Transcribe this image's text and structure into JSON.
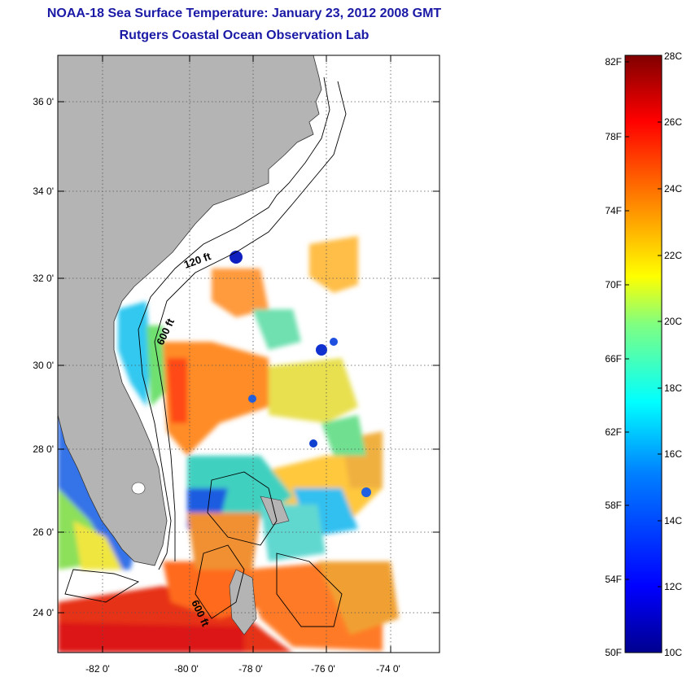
{
  "title": {
    "line1": "NOAA-18 Sea Surface Temperature:  January 23, 2012 2008 GMT",
    "line2": "Rutgers Coastal Ocean Observation Lab"
  },
  "map": {
    "lat_ticks": [
      "24 0'",
      "26 0'",
      "28 0'",
      "30 0'",
      "32 0'",
      "34 0'",
      "36 0'"
    ],
    "lon_ticks": [
      "-82 0'",
      "-80 0'",
      "-78 0'",
      "-76 0'",
      "-74 0'"
    ],
    "contour_labels": [
      "120 ft",
      "600 ft",
      "600 ft"
    ],
    "colors": {
      "land": "#b4b4b4",
      "cloud": "#ffffff",
      "grid": "#555555"
    }
  },
  "colorbar": {
    "fahrenheit_labels": [
      "82F",
      "78F",
      "74F",
      "70F",
      "66F",
      "62F",
      "58F",
      "54F",
      "50F"
    ],
    "celsius_labels": [
      "28C",
      "26C",
      "24C",
      "22C",
      "20C",
      "18C",
      "16C",
      "14C",
      "12C",
      "10C"
    ],
    "colors": [
      "#00008f",
      "#0000ff",
      "#0080ff",
      "#00ffff",
      "#80ff80",
      "#ffff00",
      "#ff8000",
      "#ff0000",
      "#800000"
    ]
  }
}
